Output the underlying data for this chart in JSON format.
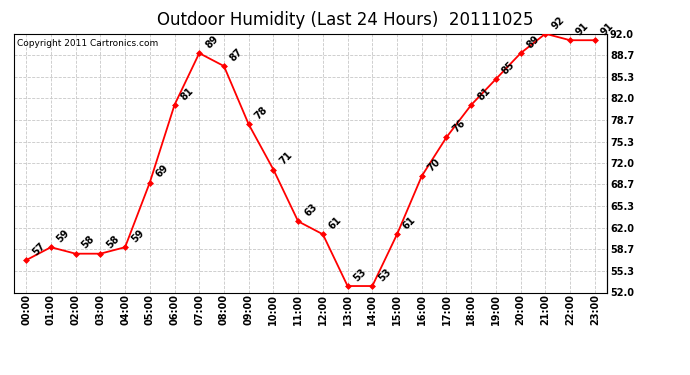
{
  "title": "Outdoor Humidity (Last 24 Hours)  20111025",
  "copyright": "Copyright 2011 Cartronics.com",
  "x_labels": [
    "00:00",
    "01:00",
    "02:00",
    "03:00",
    "04:00",
    "05:00",
    "06:00",
    "07:00",
    "08:00",
    "09:00",
    "10:00",
    "11:00",
    "12:00",
    "13:00",
    "14:00",
    "15:00",
    "16:00",
    "17:00",
    "18:00",
    "19:00",
    "20:00",
    "21:00",
    "22:00",
    "23:00"
  ],
  "x_values": [
    0,
    1,
    2,
    3,
    4,
    5,
    6,
    7,
    8,
    9,
    10,
    11,
    12,
    13,
    14,
    15,
    16,
    17,
    18,
    19,
    20,
    21,
    22,
    23
  ],
  "y_values": [
    57,
    59,
    58,
    58,
    59,
    69,
    81,
    89,
    87,
    78,
    71,
    63,
    61,
    53,
    53,
    61,
    70,
    76,
    81,
    85,
    89,
    92,
    91,
    91
  ],
  "y_ticks": [
    52.0,
    55.3,
    58.7,
    62.0,
    65.3,
    68.7,
    72.0,
    75.3,
    78.7,
    82.0,
    85.3,
    88.7,
    92.0
  ],
  "y_tick_labels": [
    "52.0",
    "55.3",
    "58.7",
    "62.0",
    "65.3",
    "68.7",
    "72.0",
    "75.3",
    "78.7",
    "82.0",
    "85.3",
    "88.7",
    "92.0"
  ],
  "ylim": [
    52.0,
    92.0
  ],
  "xlim": [
    -0.5,
    23.5
  ],
  "line_color": "#ff0000",
  "marker_color": "#ff0000",
  "bg_color": "#ffffff",
  "grid_color": "#c8c8c8",
  "title_fontsize": 12,
  "tick_fontsize": 7,
  "annot_fontsize": 7,
  "copyright_fontsize": 6.5
}
